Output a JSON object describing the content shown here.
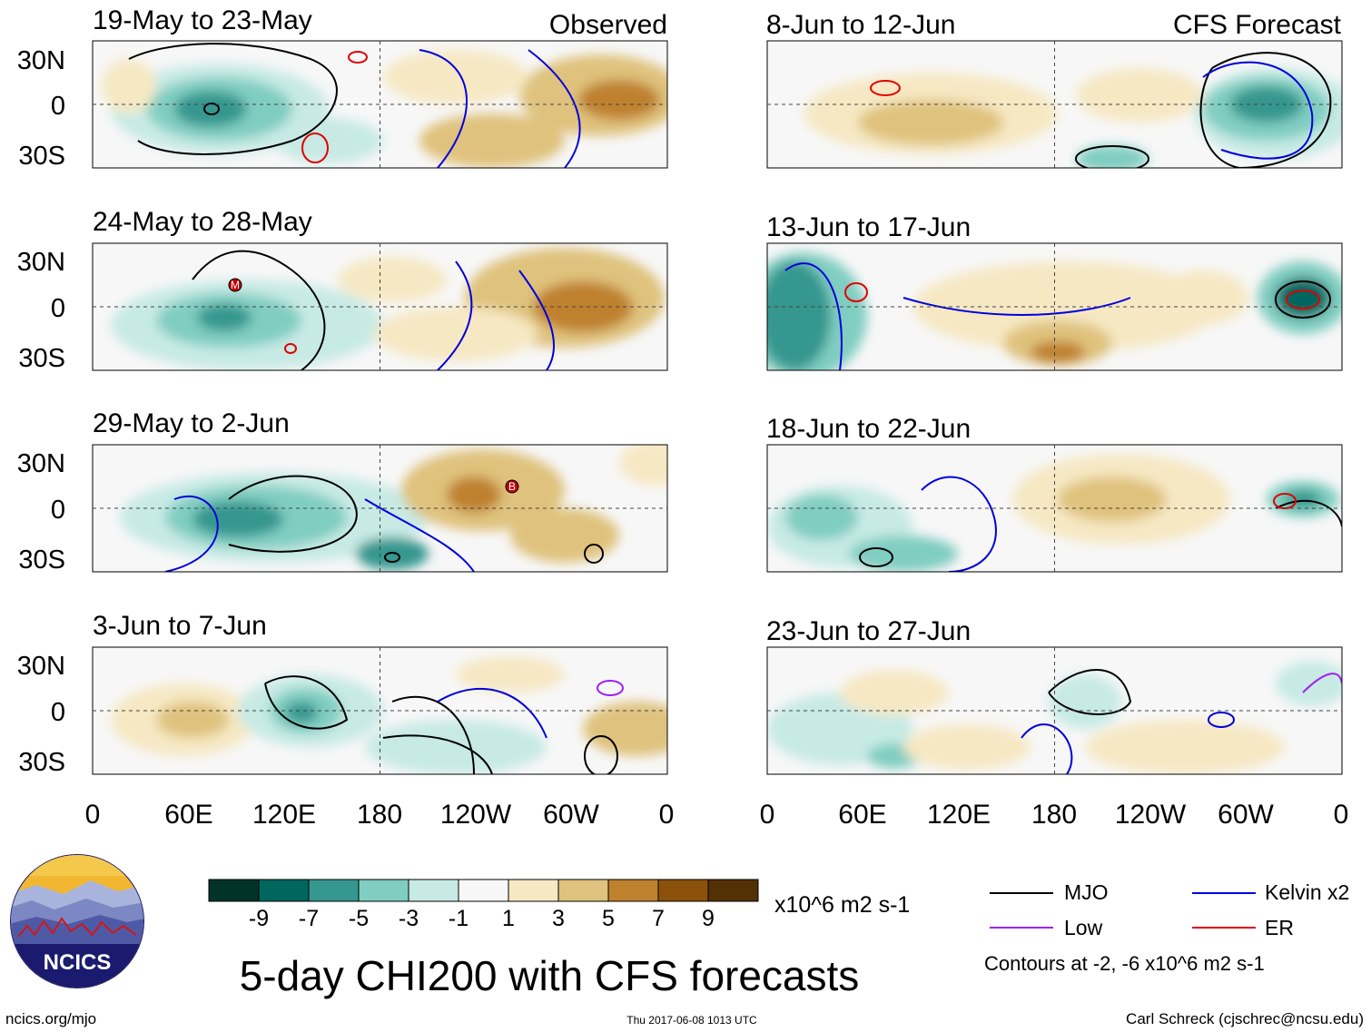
{
  "title": "5-day CHI200 with CFS forecasts",
  "columns": {
    "observed_label": "Observed",
    "forecast_label": "CFS Forecast"
  },
  "panels": {
    "observed": [
      "19-May to 23-May",
      "24-May to 28-May",
      "29-May to 2-Jun",
      "3-Jun to 7-Jun"
    ],
    "forecast": [
      "8-Jun to 12-Jun",
      "13-Jun to 17-Jun",
      "18-Jun to 22-Jun",
      "23-Jun to 27-Jun"
    ]
  },
  "lat_labels": [
    "30N",
    "0",
    "30S"
  ],
  "lon_labels": [
    "0",
    "60E",
    "120E",
    "180",
    "120W",
    "60W",
    "0"
  ],
  "colorbar": {
    "ticks": [
      "-9",
      "-7",
      "-5",
      "-3",
      "-1",
      "1",
      "3",
      "5",
      "7",
      "9"
    ],
    "units": "x10^6 m2 s-1",
    "colors": [
      "#01332a",
      "#01665e",
      "#35978f",
      "#80cdc1",
      "#c7eae5",
      "#f7f7f7",
      "#f6e8c3",
      "#dfc27d",
      "#bf812d",
      "#8c510a",
      "#543005"
    ]
  },
  "legend": {
    "items": [
      {
        "label": "MJO",
        "color": "#000000"
      },
      {
        "label": "Kelvin x2",
        "color": "#0000dd"
      },
      {
        "label": "Low",
        "color": "#a020f0"
      },
      {
        "label": "ER",
        "color": "#e00000"
      }
    ],
    "note": "Contours at -2, -6 x10^6 m2 s-1"
  },
  "storm_markers": [
    {
      "panel": "observed-2",
      "letter": "M"
    },
    {
      "panel": "observed-3",
      "letter": "B"
    }
  ],
  "footer": {
    "logo_text": "NCICS",
    "url": "ncics.org/mjo",
    "timestamp": "Thu 2017-06-08 1013 UTC",
    "credit": "Carl Schreck (cjschrec@ncsu.edu)"
  }
}
